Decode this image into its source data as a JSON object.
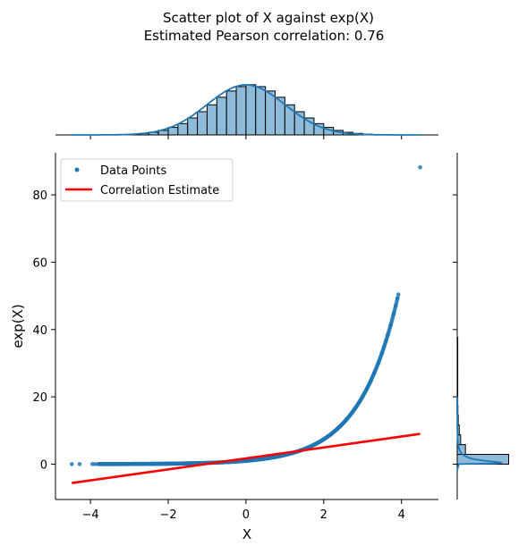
{
  "chart_data": {
    "type": "scatter",
    "title": "Scatter plot of X against exp(X)",
    "subtitle": "Estimated Pearson correlation: 0.76",
    "xlabel": "X",
    "ylabel": "exp(X)",
    "xlim": [
      -4.9,
      4.95
    ],
    "ylim": [
      -10.5,
      92.5
    ],
    "xticks": [
      -4,
      -2,
      0,
      2,
      4
    ],
    "xtick_labels": [
      "−4",
      "−2",
      "0",
      "2",
      "4"
    ],
    "yticks": [
      0,
      20,
      40,
      60,
      80
    ],
    "ytick_labels": [
      "0",
      "20",
      "40",
      "60",
      "80"
    ],
    "grid": false,
    "legend": {
      "placement": "top-left",
      "entries": [
        "Data Points",
        "Correlation Estimate"
      ]
    },
    "series": [
      {
        "name": "Data Points",
        "kind": "scatter",
        "color": "#1f77b4",
        "x": [
          -4.48,
          -4.28,
          -3.95,
          -3.88,
          -3.72,
          -3.65,
          -3.55,
          -3.4,
          -3.2,
          -3.0,
          -2.8,
          -2.6,
          -2.4,
          -2.2,
          -2.0,
          -1.8,
          -1.6,
          -1.4,
          -1.2,
          -1.0,
          -0.8,
          -0.6,
          -0.4,
          -0.2,
          0.0,
          0.2,
          0.4,
          0.6,
          0.8,
          1.0,
          1.2,
          1.4,
          1.6,
          1.8,
          2.0,
          2.2,
          2.4,
          2.6,
          2.8,
          3.0,
          3.1,
          3.2,
          3.3,
          3.4,
          3.5,
          3.55,
          3.6,
          3.65,
          3.72,
          3.8,
          3.85,
          3.9,
          3.92,
          4.48
        ],
        "y": [
          0.01,
          0.01,
          0.02,
          0.02,
          0.02,
          0.03,
          0.03,
          0.03,
          0.04,
          0.05,
          0.06,
          0.07,
          0.09,
          0.11,
          0.14,
          0.17,
          0.2,
          0.25,
          0.3,
          0.37,
          0.45,
          0.55,
          0.67,
          0.82,
          1.0,
          1.22,
          1.49,
          1.82,
          2.23,
          2.72,
          3.32,
          4.06,
          4.95,
          6.05,
          7.39,
          9.03,
          11.02,
          13.46,
          16.44,
          20.09,
          22.2,
          24.53,
          27.11,
          29.96,
          33.12,
          34.81,
          36.6,
          38.47,
          41.26,
          44.7,
          46.99,
          49.4,
          50.4,
          88.2
        ]
      },
      {
        "name": "Correlation Estimate",
        "kind": "line",
        "color": "#ff0000",
        "x": [
          -4.48,
          4.48
        ],
        "y": [
          -5.6,
          9.0
        ]
      }
    ],
    "top_marginal": {
      "type": "histogram",
      "color": "#1f77b4",
      "bin_edges": [
        -4.5,
        -4.25,
        -4.0,
        -3.75,
        -3.5,
        -3.25,
        -3.0,
        -2.75,
        -2.5,
        -2.25,
        -2.0,
        -1.75,
        -1.5,
        -1.25,
        -1.0,
        -0.75,
        -0.5,
        -0.25,
        0.0,
        0.25,
        0.5,
        0.75,
        1.0,
        1.25,
        1.5,
        1.75,
        2.0,
        2.25,
        2.5,
        2.75,
        3.0,
        3.25,
        3.5,
        3.75,
        4.0,
        4.25,
        4.5
      ],
      "densities": [
        0.0,
        0.0,
        0.0,
        0.0,
        0.001,
        0.003,
        0.006,
        0.012,
        0.021,
        0.036,
        0.06,
        0.09,
        0.135,
        0.185,
        0.24,
        0.3,
        0.35,
        0.385,
        0.4,
        0.385,
        0.35,
        0.3,
        0.24,
        0.185,
        0.135,
        0.09,
        0.06,
        0.036,
        0.021,
        0.012,
        0.006,
        0.003,
        0.001,
        0.0,
        0.0,
        0.0
      ],
      "ylim": [
        0,
        0.42
      ],
      "kde": true
    },
    "right_marginal": {
      "type": "histogram",
      "orientation": "horizontal",
      "color": "#1f77b4",
      "bin_edges": [
        0,
        2.9,
        5.8,
        8.7,
        11.6,
        14.5,
        17.4,
        20.3,
        23.2,
        26.1,
        29.0,
        31.9,
        34.8,
        37.7,
        40.6,
        43.5,
        46.4,
        49.3,
        52.2,
        55.1,
        58.0,
        60.9,
        63.8,
        66.7,
        69.6,
        72.5,
        75.4,
        78.3,
        81.2,
        84.1,
        87.0,
        89.9
      ],
      "densities": [
        0.75,
        0.12,
        0.05,
        0.03,
        0.015,
        0.01,
        0.007,
        0.004,
        0.003,
        0.002,
        0.001,
        0.001,
        0.001,
        0.0,
        0.0,
        0.0,
        0.0,
        0.0,
        0.0,
        0.0,
        0.0,
        0.0,
        0.0,
        0.0,
        0.0,
        0.0,
        0.0,
        0.0,
        0.0,
        0.0,
        0.0
      ],
      "xlim": [
        0,
        0.9
      ],
      "kde": true
    }
  }
}
